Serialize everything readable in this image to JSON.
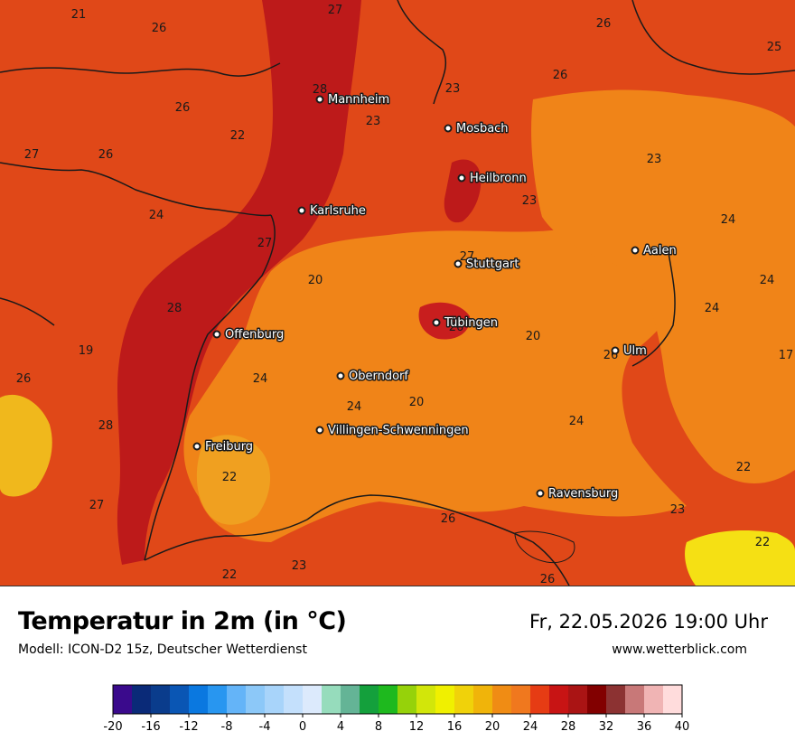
{
  "title": "Temperatur in 2m (in °C)",
  "model": "Modell: ICON-D2 15z, Deutscher Wetterdienst",
  "datetime": "Fr, 22.05.2026 19:00 Uhr",
  "website": "www.wetterblick.com",
  "colors": {
    "t17": "#f0a020",
    "t20": "#f08418",
    "t23": "#ea6018",
    "t26": "#e04818",
    "t28": "#bd1a1a",
    "t19": "#f0b81c",
    "t22": "#f5e014",
    "border": "#1a1a1a"
  },
  "cities": [
    {
      "name": "Mannheim"
    },
    {
      "name": "Mosbach"
    },
    {
      "name": "Heilbronn"
    },
    {
      "name": "Karlsruhe"
    },
    {
      "name": "Aalen"
    },
    {
      "name": "Stuttgart"
    },
    {
      "name": "Tübingen"
    },
    {
      "name": "Offenburg"
    },
    {
      "name": "Ulm"
    },
    {
      "name": "Oberndorf"
    },
    {
      "name": "Villingen-Schwenningen"
    },
    {
      "name": "Freiburg"
    },
    {
      "name": "Ravensburg"
    }
  ],
  "temperature_labels": [
    "21",
    "27",
    "26",
    "26",
    "25",
    "28",
    "23",
    "26",
    "26",
    "22",
    "23",
    "27",
    "26",
    "23",
    "23",
    "24",
    "24",
    "27",
    "27",
    "20",
    "24",
    "24",
    "28",
    "26",
    "20",
    "19",
    "26",
    "24",
    "26",
    "20",
    "24",
    "28",
    "24",
    "17",
    "22",
    "27",
    "26",
    "23",
    "22",
    "23",
    "22",
    "26"
  ],
  "legend": {
    "ticks": [
      "-20",
      "-16",
      "-12",
      "-8",
      "-4",
      "0",
      "4",
      "8",
      "12",
      "16",
      "20",
      "24",
      "28",
      "32",
      "36",
      "40"
    ],
    "colors": [
      "#3a0a8c",
      "#0a2a78",
      "#0a3c8c",
      "#0a56b4",
      "#0a78e0",
      "#2896f0",
      "#64b4f8",
      "#8cc8f8",
      "#a8d4fa",
      "#c4e0fc",
      "#dceafc",
      "#96dcbc",
      "#64b496",
      "#14a03c",
      "#1eb91e",
      "#96d20a",
      "#d2e60a",
      "#f0f000",
      "#f0d20a",
      "#f0b40a",
      "#f08c14",
      "#f0781e",
      "#e63c14",
      "#c81414",
      "#aa1414",
      "#820000",
      "#8c3232",
      "#c87878",
      "#f0b4b4",
      "#ffdcdc"
    ]
  }
}
